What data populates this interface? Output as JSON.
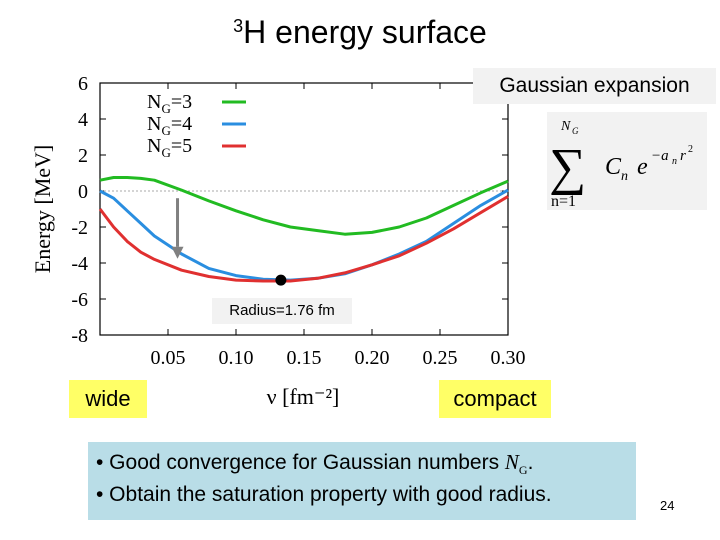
{
  "slide": {
    "title_sup": "3",
    "title_main": "H energy surface",
    "gaussian_label": "Gaussian expansion",
    "formula": {
      "upper": "N",
      "upper_sub": "G",
      "lower": "n=1",
      "term": "C",
      "term_sub": "n",
      "exp_base": "e",
      "exp": "−a",
      "exp_sub": "n",
      "exp_r": "r",
      "exp_pow": "2"
    },
    "radius_label": "Radius=1.76 fm",
    "wide_label": "wide",
    "compact_label": "compact",
    "bullets": [
      {
        "prefix": "• Good convergence for Gaussian numbers ",
        "italic": "N",
        "sub": "G",
        "suffix": "."
      },
      {
        "prefix": "• Obtain the saturation property with good radius.",
        "italic": "",
        "sub": "",
        "suffix": ""
      }
    ],
    "page_number": "24"
  },
  "colors": {
    "ng3": "#22bb22",
    "ng4": "#2a8ee0",
    "ng5": "#e03030",
    "highlight": "#ffff66",
    "note_bg": "#b9dde7",
    "arrow": "#808080"
  },
  "chart_data": {
    "type": "line",
    "xlabel": "ν [fm⁻²]",
    "ylabel": "Energy [MeV]",
    "xlim": [
      0.0,
      0.3
    ],
    "ylim": [
      -8,
      6
    ],
    "xticks": [
      "0.05",
      "0.10",
      "0.15",
      "0.20",
      "0.25",
      "0.30"
    ],
    "xtick_values": [
      0.05,
      0.1,
      0.15,
      0.2,
      0.25,
      0.3
    ],
    "yticks": [
      "6",
      "4",
      "2",
      "0",
      "-2",
      "-4",
      "-6",
      "-8"
    ],
    "ytick_values": [
      6,
      4,
      2,
      0,
      -2,
      -4,
      -6,
      -8
    ],
    "reference_line": 0,
    "legend_position": "top-left",
    "series": [
      {
        "name": "N",
        "sub": "G",
        "suffix": "=3",
        "color": "#22bb22",
        "x": [
          0.0,
          0.01,
          0.02,
          0.03,
          0.04,
          0.06,
          0.08,
          0.1,
          0.12,
          0.14,
          0.16,
          0.18,
          0.2,
          0.22,
          0.24,
          0.26,
          0.28,
          0.3
        ],
        "y": [
          0.6,
          0.75,
          0.75,
          0.7,
          0.6,
          0.05,
          -0.55,
          -1.1,
          -1.6,
          -2.0,
          -2.2,
          -2.4,
          -2.3,
          -2.0,
          -1.5,
          -0.8,
          -0.1,
          0.55
        ]
      },
      {
        "name": "N",
        "sub": "G",
        "suffix": "=4",
        "color": "#2a8ee0",
        "x": [
          0.0,
          0.01,
          0.02,
          0.03,
          0.04,
          0.06,
          0.08,
          0.1,
          0.12,
          0.14,
          0.16,
          0.18,
          0.2,
          0.22,
          0.24,
          0.26,
          0.28,
          0.3
        ],
        "y": [
          0.0,
          -0.4,
          -1.1,
          -1.8,
          -2.5,
          -3.5,
          -4.3,
          -4.7,
          -4.9,
          -4.95,
          -4.85,
          -4.6,
          -4.1,
          -3.5,
          -2.8,
          -1.8,
          -0.8,
          0.05
        ]
      },
      {
        "name": "N",
        "sub": "G",
        "suffix": "=5",
        "color": "#e03030",
        "x": [
          0.0,
          0.01,
          0.02,
          0.03,
          0.04,
          0.06,
          0.08,
          0.1,
          0.12,
          0.14,
          0.16,
          0.18,
          0.2,
          0.22,
          0.24,
          0.26,
          0.28,
          0.3
        ],
        "y": [
          -1.0,
          -2.0,
          -2.8,
          -3.4,
          -3.8,
          -4.4,
          -4.75,
          -4.95,
          -5.0,
          -5.0,
          -4.85,
          -4.55,
          -4.1,
          -3.6,
          -2.9,
          -2.1,
          -1.2,
          -0.3
        ]
      }
    ],
    "marker": {
      "x": 0.133,
      "y": -4.95
    },
    "arrow": {
      "x": 0.057,
      "from_y": -0.4,
      "to_y": -3.1
    }
  }
}
